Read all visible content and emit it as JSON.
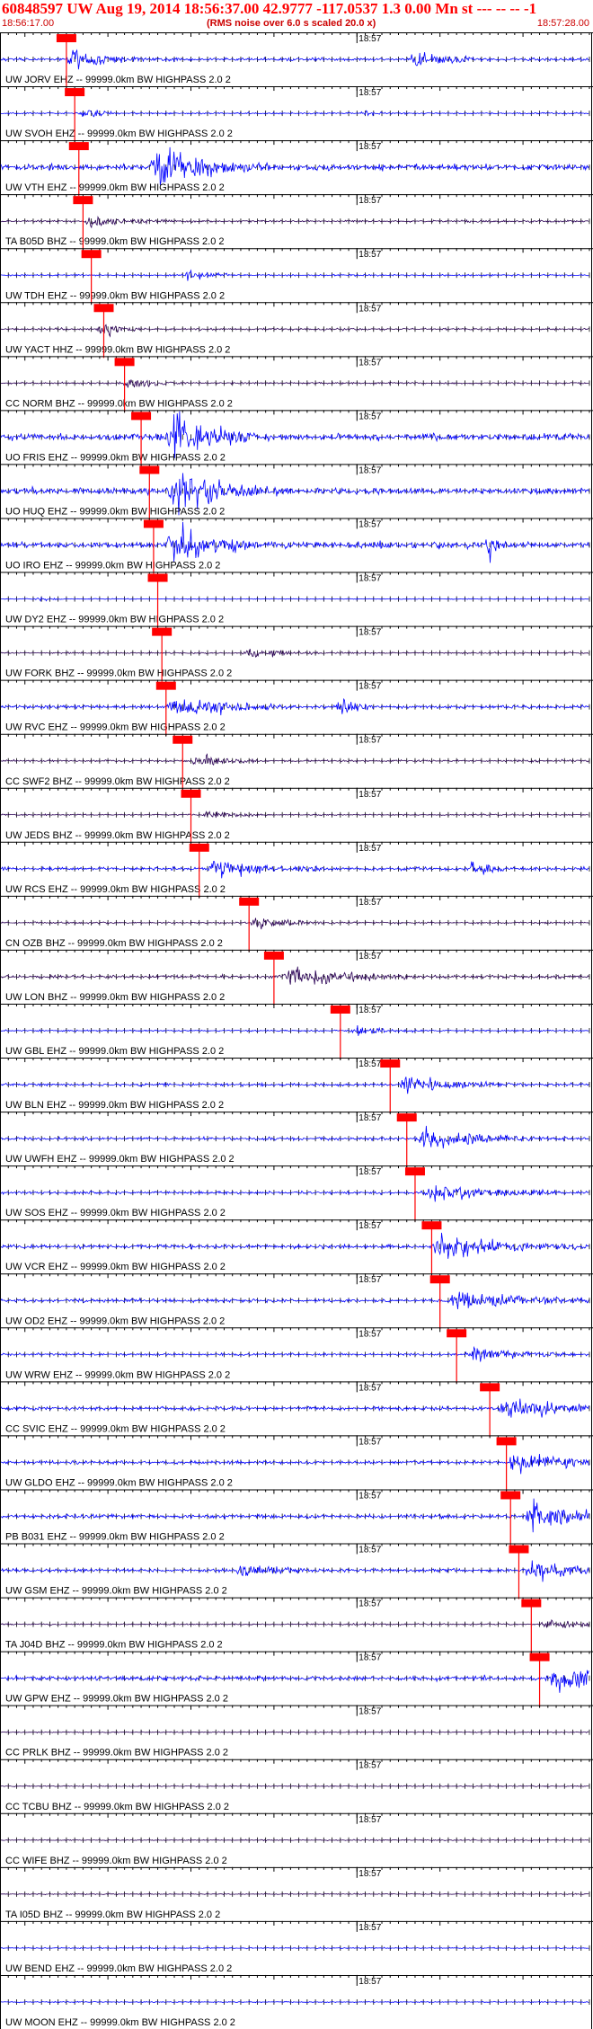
{
  "header": {
    "title": "60848597 UW Aug 19, 2014 18:56:37.00   42.9777 -117.0537  1.3 0.00 Mn st --- -- --  -1",
    "start_time": "18:56:17.00",
    "end_time": "18:57:28.00",
    "noise_note": "(RMS noise over 6.0 s scaled 20.0 x)"
  },
  "chart_data": {
    "type": "line",
    "x_unit": "seconds after 18:56:17",
    "x_range": [
      0,
      71
    ],
    "minute_mark": {
      "label": "18:57",
      "t": 43
    },
    "channel_suffix": " -- 99999.0km BW  HIGHPASS  2.0  2",
    "colors": {
      "trace_blue": "#0000ff",
      "trace_dark": "#2a0055",
      "pick": "#ff0000",
      "grid": "#000000"
    },
    "channels": [
      {
        "name": "UW JORV EHZ",
        "color": "blue",
        "pick": 8,
        "amp": 1.4,
        "burst": [
          9,
          4
        ],
        "burst2": [
          50,
          4
        ],
        "pick_label": true
      },
      {
        "name": "UW SVOH EHZ",
        "color": "blue",
        "pick": 9,
        "amp": 0.7,
        "burst": [
          10,
          2
        ],
        "burst2": [
          44,
          1
        ],
        "pick_label": true
      },
      {
        "name": "UW VTH EHZ",
        "color": "blue",
        "pick": 9.5,
        "amp": 2.5,
        "burst": [
          19,
          6
        ],
        "clip": true,
        "pick_label": true
      },
      {
        "name": "TA B05D BHZ",
        "color": "dark",
        "pick": 10,
        "amp": 0.9,
        "burst": [
          11,
          4
        ],
        "pick_label": true
      },
      {
        "name": "UW TDH EHZ",
        "color": "blue",
        "pick": 11,
        "amp": 0.8,
        "burst": [
          23,
          2
        ],
        "pick_label": true
      },
      {
        "name": "UW YACT HHZ",
        "color": "dark",
        "pick": 12.5,
        "amp": 0.9,
        "burst": [
          12.5,
          2
        ],
        "pick_label": true
      },
      {
        "name": "CC NORM BHZ",
        "color": "dark",
        "pick": 15,
        "amp": 0.8,
        "burst": [
          15,
          3
        ],
        "pick_label": true
      },
      {
        "name": "UO FRIS EHZ",
        "color": "blue",
        "pick": 17,
        "amp": 3,
        "burst": [
          21,
          4
        ],
        "clip": true,
        "pick_label": true
      },
      {
        "name": "UO HUQ EHZ",
        "color": "blue",
        "pick": 18,
        "amp": 3,
        "burst": [
          21,
          5
        ],
        "clip": true,
        "pick_label": true
      },
      {
        "name": "UO IRO EHZ",
        "color": "blue",
        "pick": 18.5,
        "amp": 2.8,
        "burst": [
          21,
          4
        ],
        "clip": true,
        "burst2": [
          59,
          1
        ],
        "pick_label": true
      },
      {
        "name": "UW DY2 EHZ",
        "color": "blue",
        "pick": 19,
        "amp": 0.4,
        "burst": [
          5,
          1
        ],
        "pick_label": true
      },
      {
        "name": "UW FORK BHZ",
        "color": "dark",
        "pick": 19.5,
        "amp": 0.7,
        "burst": [
          30,
          4
        ],
        "pick_label": true
      },
      {
        "name": "UW RVC EHZ",
        "color": "blue",
        "pick": 20,
        "amp": 1.6,
        "burst": [
          21,
          6
        ],
        "burst2": [
          41,
          2
        ],
        "pick_label": true
      },
      {
        "name": "CC SWF2 BHZ",
        "color": "dark",
        "pick": 22,
        "amp": 0.9,
        "burst": [
          24,
          3
        ],
        "pick_label": true
      },
      {
        "name": "UW JEDS BHZ",
        "color": "dark",
        "pick": 23,
        "amp": 0.6,
        "burst": [
          25,
          3
        ],
        "pick_label": true
      },
      {
        "name": "UW RCS EHZ",
        "color": "blue",
        "pick": 24,
        "amp": 1.5,
        "burst": [
          26,
          5
        ],
        "burst2": [
          57,
          2
        ],
        "pick_label": true
      },
      {
        "name": "CN OZB BHZ",
        "color": "dark",
        "pick": 30,
        "amp": 0.8,
        "burst": [
          31,
          4
        ],
        "pick_label": true
      },
      {
        "name": "UW LON BHZ",
        "color": "dark",
        "pick": 33,
        "amp": 1.5,
        "burst": [
          35,
          6
        ],
        "pick_label": true
      },
      {
        "name": "UW GBL EHZ",
        "color": "blue",
        "pick": 41,
        "amp": 0.7,
        "burst": [
          43,
          3
        ],
        "pick_label": true
      },
      {
        "name": "UW BLN EHZ",
        "color": "blue",
        "pick": 47,
        "amp": 1.3,
        "burst": [
          49,
          5
        ],
        "pick_label": true
      },
      {
        "name": "UW UWFH EHZ",
        "color": "blue",
        "pick": 49,
        "amp": 1.4,
        "burst": [
          51,
          6
        ],
        "pick_label": true
      },
      {
        "name": "UW SOS EHZ",
        "color": "blue",
        "pick": 50,
        "amp": 1.3,
        "burst": [
          52,
          6
        ],
        "pick_label": true
      },
      {
        "name": "UW VCR EHZ",
        "color": "blue",
        "pick": 52,
        "amp": 1.7,
        "burst": [
          53,
          7
        ],
        "pick_label": true
      },
      {
        "name": "UW OD2 EHZ",
        "color": "blue",
        "pick": 53,
        "amp": 1.5,
        "burst": [
          55,
          7
        ],
        "pick_label": true
      },
      {
        "name": "UW WRW EHZ",
        "color": "blue",
        "pick": 55,
        "amp": 1,
        "burst": [
          57,
          5
        ],
        "pick_label": true
      },
      {
        "name": "CC SVIC EHZ",
        "color": "blue",
        "pick": 59,
        "amp": 1.5,
        "burst": [
          61,
          6
        ],
        "pick_label": true
      },
      {
        "name": "UW GLDO EHZ",
        "color": "blue",
        "pick": 61,
        "amp": 1.4,
        "burst": [
          62,
          6
        ],
        "pick_label": true
      },
      {
        "name": "PB B031 EHZ",
        "color": "blue",
        "pick": 61.5,
        "amp": 1.8,
        "burst": [
          64,
          6
        ],
        "pick_label": true
      },
      {
        "name": "UW GSM EHZ",
        "color": "blue",
        "pick": 62.5,
        "amp": 1.5,
        "burst": [
          64,
          5
        ],
        "burst2": [
          29,
          4
        ],
        "pick_label": true
      },
      {
        "name": "TA J04D BHZ",
        "color": "dark",
        "pick": 64,
        "amp": 0.7,
        "burst": [
          66,
          4
        ],
        "pick_label": true
      },
      {
        "name": "UW GPW EHZ",
        "color": "blue",
        "pick": 65,
        "amp": 2,
        "burst": [
          67,
          5
        ],
        "pick_label": true
      },
      {
        "name": "CC PRLK BHZ",
        "color": "dark",
        "amp": 0.5
      },
      {
        "name": "CC TCBU BHZ",
        "color": "dark",
        "amp": 0.5
      },
      {
        "name": "CC WIFE BHZ",
        "color": "dark",
        "amp": 0.5
      },
      {
        "name": "TA I05D BHZ",
        "color": "dark",
        "amp": 0.5
      },
      {
        "name": "UW BEND EHZ",
        "color": "blue",
        "amp": 0.5
      },
      {
        "name": "UW MOON EHZ",
        "color": "blue",
        "amp": 0.5
      }
    ]
  }
}
